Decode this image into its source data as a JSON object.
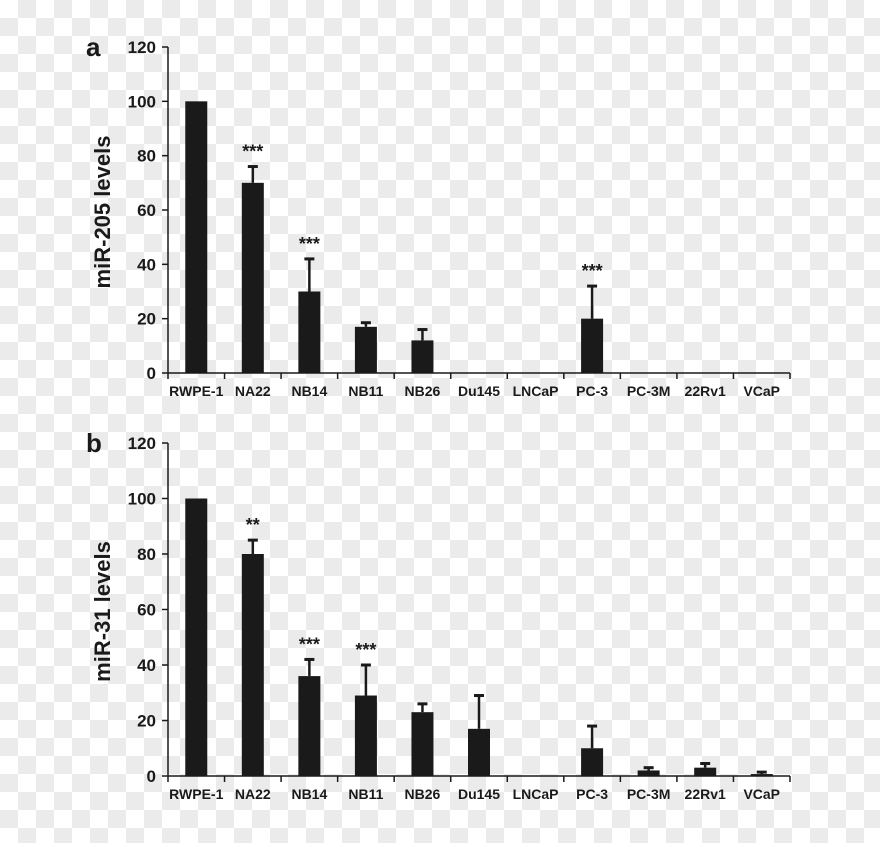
{
  "chart_data": [
    {
      "type": "bar",
      "panel_label": "a",
      "ylabel": "miR-205 levels",
      "xlabel": "",
      "ylim": [
        0,
        120
      ],
      "yticks": [
        0,
        20,
        40,
        60,
        80,
        100,
        120
      ],
      "grid": false,
      "bar_color": "#1a1a1a",
      "categories": [
        "RWPE-1",
        "NA22",
        "NB14",
        "NB11",
        "NB26",
        "Du145",
        "LNCaP",
        "PC-3",
        "PC-3M",
        "22Rv1",
        "VCaP"
      ],
      "values": [
        100,
        70,
        30,
        17,
        12,
        0,
        0,
        20,
        0,
        0,
        0
      ],
      "errors": [
        0,
        6,
        12,
        1.5,
        4,
        0,
        0,
        12,
        0,
        0,
        0
      ],
      "annotations": [
        "",
        "***",
        "***",
        "",
        "",
        "",
        "",
        "***",
        "",
        "",
        ""
      ]
    },
    {
      "type": "bar",
      "panel_label": "b",
      "ylabel": "miR-31 levels",
      "xlabel": "",
      "ylim": [
        0,
        120
      ],
      "yticks": [
        0,
        20,
        40,
        60,
        80,
        100,
        120
      ],
      "grid": false,
      "bar_color": "#1a1a1a",
      "categories": [
        "RWPE-1",
        "NA22",
        "NB14",
        "NB11",
        "NB26",
        "Du145",
        "LNCaP",
        "PC-3",
        "PC-3M",
        "22Rv1",
        "VCaP"
      ],
      "values": [
        100,
        80,
        36,
        29,
        23,
        17,
        0,
        10,
        2,
        3,
        0.7
      ],
      "errors": [
        0,
        5,
        6,
        11,
        3,
        12,
        0,
        8,
        1,
        1.5,
        0.7
      ],
      "annotations": [
        "",
        "**",
        "***",
        "***",
        "",
        "",
        "",
        "",
        "",
        "",
        ""
      ]
    }
  ]
}
